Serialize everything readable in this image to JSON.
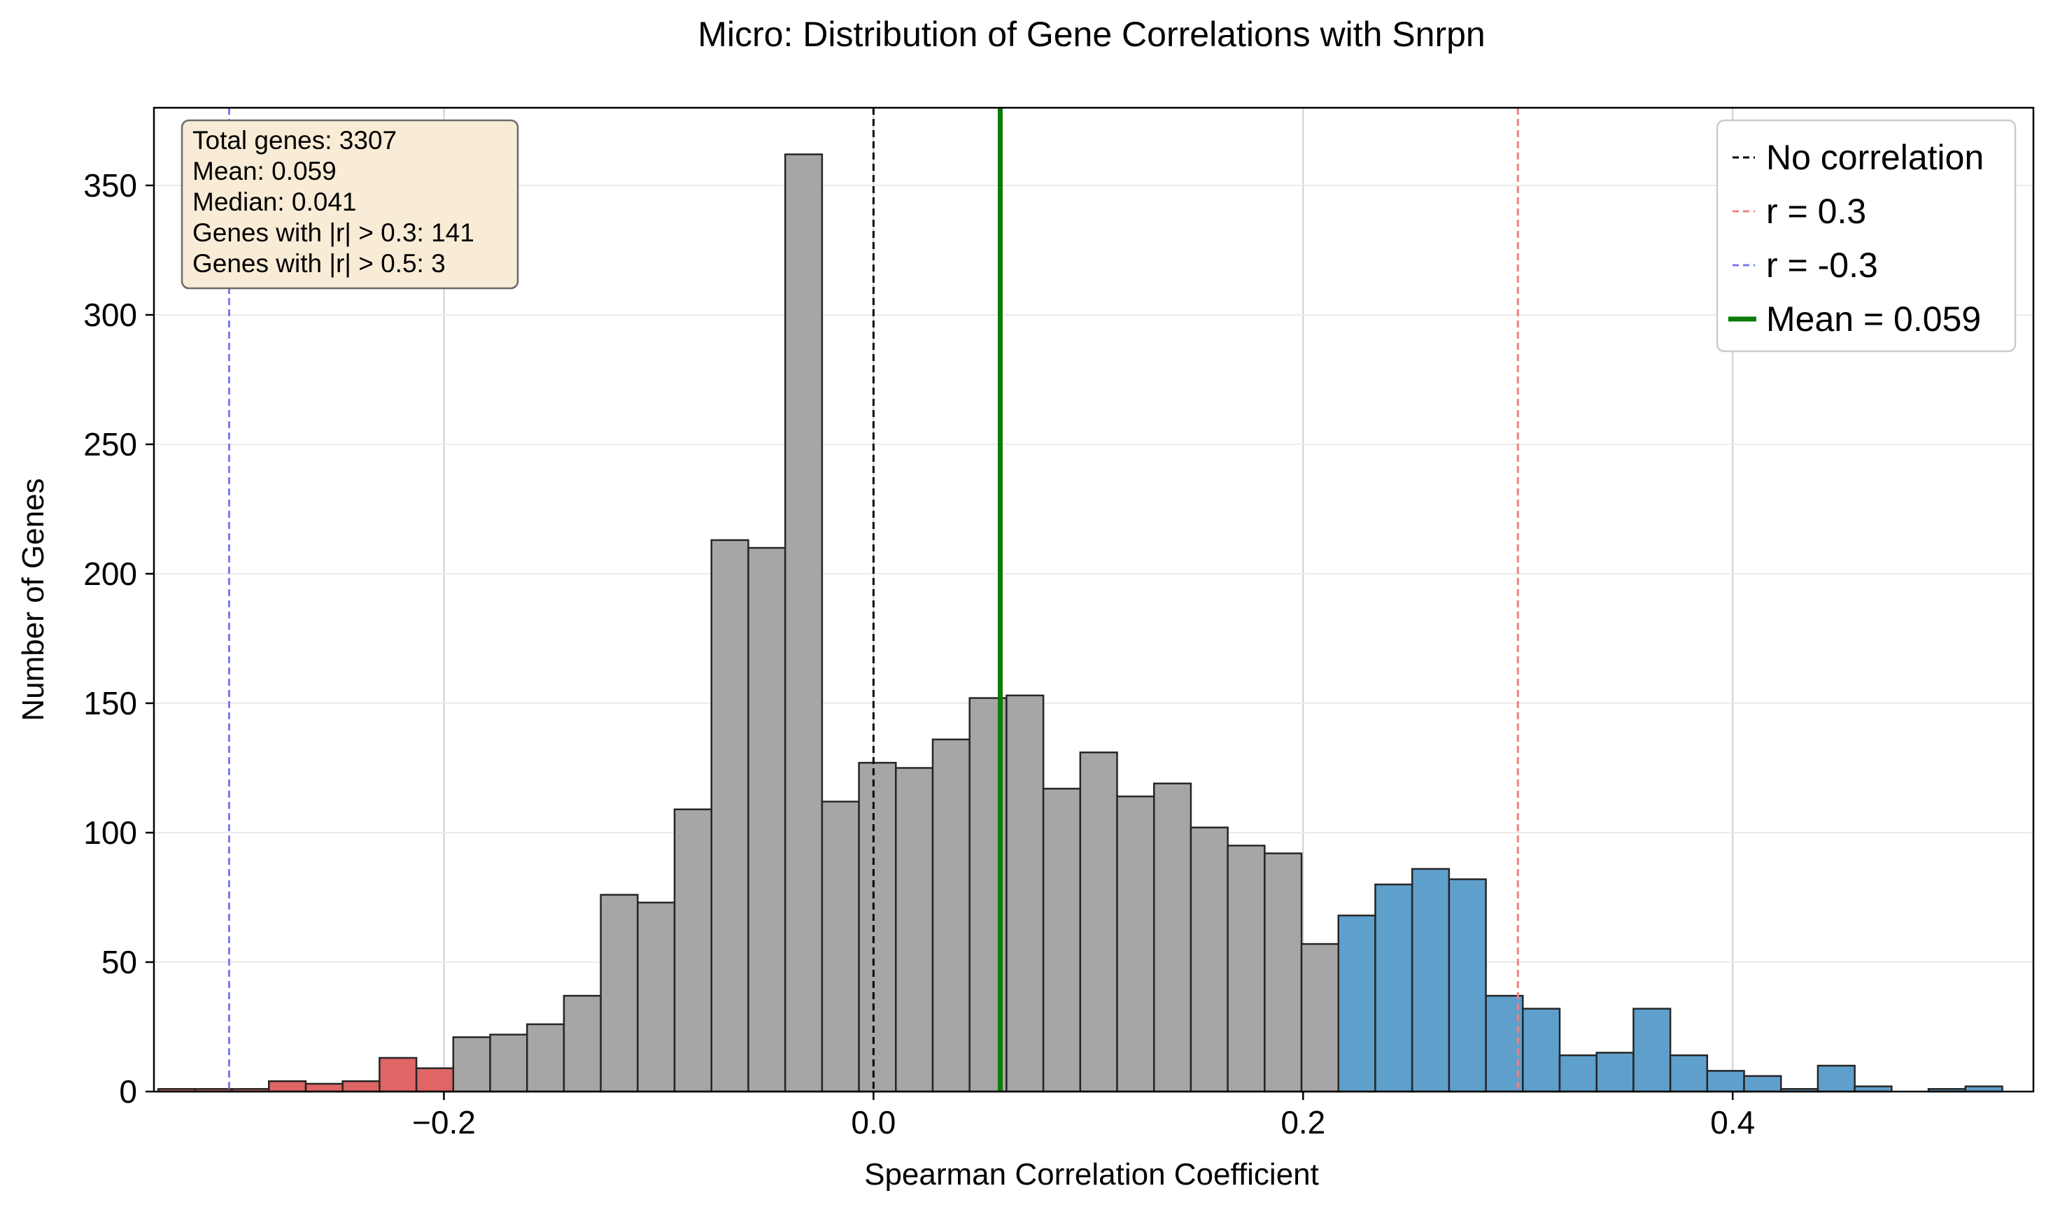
{
  "chart_data": {
    "type": "bar",
    "title": "Micro: Distribution of Gene Correlations with Snrpn",
    "xlabel": "Spearman Correlation Coefficient",
    "ylabel": "Number of Genes",
    "xlim": [
      -0.335,
      0.54
    ],
    "ylim": [
      0,
      380
    ],
    "xticks": [
      -0.2,
      0.0,
      0.2,
      0.4
    ],
    "xtick_labels": [
      "−0.2",
      "0.0",
      "0.2",
      "0.4"
    ],
    "yticks": [
      0,
      50,
      100,
      150,
      200,
      250,
      300,
      350
    ],
    "ytick_labels": [
      "0",
      "50",
      "100",
      "150",
      "200",
      "250",
      "300",
      "350"
    ],
    "grid": "vertical lines at x ticks; faint horizontal lines at y ticks",
    "legend_position": "top-right",
    "bin_start": -0.333,
    "bin_width": 0.01717,
    "counts": [
      1,
      1,
      1,
      4,
      3,
      4,
      13,
      9,
      21,
      22,
      26,
      37,
      76,
      73,
      109,
      213,
      210,
      362,
      112,
      127,
      125,
      136,
      152,
      153,
      117,
      131,
      114,
      119,
      102,
      95,
      92,
      57,
      68,
      80,
      86,
      82,
      37,
      32,
      14,
      15,
      32,
      14,
      8,
      6,
      1,
      10,
      2,
      0,
      1,
      2
    ],
    "bin_groups": [
      "neg",
      "neg",
      "neg",
      "neg",
      "neg",
      "neg",
      "neg",
      "neg",
      "mid",
      "mid",
      "mid",
      "mid",
      "mid",
      "mid",
      "mid",
      "mid",
      "mid",
      "mid",
      "mid",
      "mid",
      "mid",
      "mid",
      "mid",
      "mid",
      "mid",
      "mid",
      "mid",
      "mid",
      "mid",
      "mid",
      "mid",
      "mid",
      "pos",
      "pos",
      "pos",
      "pos",
      "pos",
      "pos",
      "pos",
      "pos",
      "pos",
      "pos",
      "pos",
      "pos",
      "pos",
      "pos",
      "pos",
      "pos",
      "pos",
      "pos"
    ],
    "group_colors": {
      "neg": "#e06666",
      "mid": "#a6a6a6",
      "pos": "#5f9fcc"
    },
    "edge_color": "#262626",
    "reference_lines": [
      {
        "label": "No correlation",
        "x": 0.0,
        "color": "#000000",
        "style": "dashed"
      },
      {
        "label": "r = 0.3",
        "x": 0.3,
        "color": "#f08080",
        "style": "dashed"
      },
      {
        "label": "r = -0.3",
        "x": -0.3,
        "color": "#7a7aef",
        "style": "dashed"
      },
      {
        "label": "Mean = 0.059",
        "x": 0.059,
        "color": "#0a7d0a",
        "style": "solid"
      }
    ],
    "stats_box": [
      "Total genes: 3307",
      "Mean: 0.059",
      "Median: 0.041",
      "Genes with |r| > 0.3: 141",
      "Genes with |r| > 0.5: 3"
    ],
    "stats_box_color": "#f8ecd6"
  }
}
